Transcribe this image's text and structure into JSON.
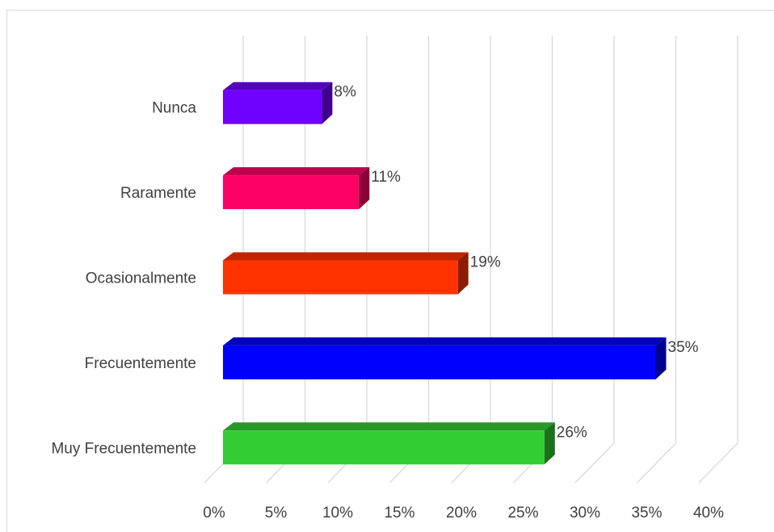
{
  "chart_data": {
    "type": "bar",
    "orientation": "horizontal",
    "style": "3d",
    "title": "",
    "xlabel": "",
    "ylabel": "",
    "xlim": [
      0,
      40
    ],
    "x_ticks": [
      "0%",
      "5%",
      "10%",
      "15%",
      "20%",
      "25%",
      "30%",
      "35%",
      "40%"
    ],
    "categories": [
      "Nunca",
      "Raramente",
      "Ocasionalmente",
      "Frecuentemente",
      "Muy Frecuentemente"
    ],
    "values": [
      8,
      11,
      19,
      35,
      26
    ],
    "data_labels": [
      "8%",
      "11%",
      "19%",
      "35%",
      "26%"
    ],
    "colors": [
      "#7000FF",
      "#FF0066",
      "#FF3300",
      "#0000FF",
      "#33CC33"
    ],
    "grid": true,
    "legend": "none"
  }
}
